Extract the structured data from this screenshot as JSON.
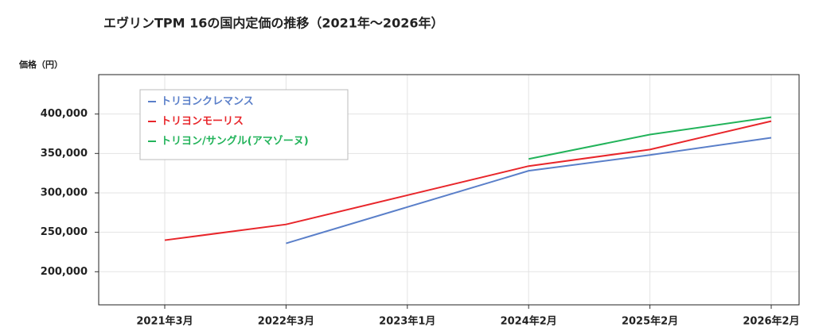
{
  "chart_data": {
    "type": "line",
    "title": "エヴリンTPM 16の国内定価の推移（2021年～2026年）",
    "y_label": "価格（円）",
    "categories": [
      "2021年3月",
      "2022年3月",
      "2023年1月",
      "2024年2月",
      "2025年2月",
      "2026年2月"
    ],
    "series": [
      {
        "name": "トリヨンクレマンス",
        "color": "#5a7fc9",
        "values": [
          null,
          236000,
          282000,
          328000,
          348000,
          370000
        ]
      },
      {
        "name": "トリヨンモーリス",
        "color": "#e8262b",
        "values": [
          240000,
          260000,
          297000,
          334000,
          355000,
          391000
        ]
      },
      {
        "name": "トリヨン/サングル(アマゾーヌ)",
        "color": "#22b35a",
        "values": [
          null,
          null,
          null,
          343000,
          374000,
          396000
        ]
      }
    ],
    "ylim": [
      158000,
      450000
    ],
    "yticks": [
      {
        "value": 200000,
        "label": "200,000"
      },
      {
        "value": 250000,
        "label": "250,000"
      },
      {
        "value": 300000,
        "label": "300,000"
      },
      {
        "value": 350000,
        "label": "350,000"
      },
      {
        "value": 400000,
        "label": "400,000"
      }
    ],
    "grid": true,
    "legend": "upper-left"
  }
}
